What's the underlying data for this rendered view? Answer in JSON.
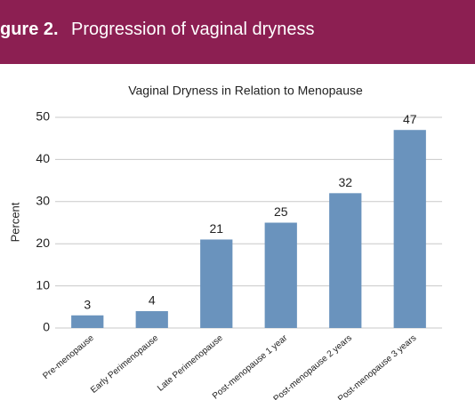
{
  "header": {
    "figure_label": "gure 2.",
    "caption": "Progression of vaginal dryness"
  },
  "chart_data": {
    "type": "bar",
    "title": "Vaginal Dryness in Relation to Menopause",
    "y_label": "Percent",
    "categories": [
      "Pre-menopause",
      "Early Perimenopause",
      "Late Perimenopause",
      "Post-menopause 1 year",
      "Post-menopause 2 years",
      "Post-menopause 3 years"
    ],
    "values": [
      3,
      4,
      21,
      25,
      32,
      47
    ],
    "color": "#6a93bd",
    "ylim": [
      0,
      50
    ],
    "yticks": [
      0,
      10,
      20,
      30,
      40,
      50
    ],
    "grid": true
  }
}
